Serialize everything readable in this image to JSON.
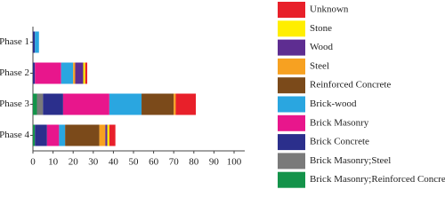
{
  "chart_data": {
    "type": "stacked-bar-horizontal",
    "categories": [
      "Phase 1",
      "Phase 2",
      "Phase 3",
      "Phase 4"
    ],
    "series": [
      {
        "name": "Unknown",
        "color": "#e8202a",
        "values": [
          0,
          1,
          10,
          3
        ]
      },
      {
        "name": "Stone",
        "color": "#ffee00",
        "values": [
          0,
          1,
          0,
          1
        ]
      },
      {
        "name": "Wood",
        "color": "#5e2d91",
        "values": [
          0,
          4,
          0,
          1
        ]
      },
      {
        "name": "Steel",
        "color": "#f7a121",
        "values": [
          0,
          1,
          1,
          3
        ]
      },
      {
        "name": "Reinforced Concrete",
        "color": "#7b4a1a",
        "values": [
          0,
          0,
          16,
          17
        ]
      },
      {
        "name": "Brick-wood",
        "color": "#2aa6e0",
        "values": [
          2,
          6,
          16,
          3
        ]
      },
      {
        "name": "Brick Masonry",
        "color": "#e8168c",
        "values": [
          0,
          13,
          23,
          6
        ]
      },
      {
        "name": "Brick Concrete",
        "color": "#2b2f8c",
        "values": [
          1,
          1,
          10,
          6
        ]
      },
      {
        "name": "Brick Masonry;Steel",
        "color": "#7a7a7a",
        "values": [
          0,
          0,
          3,
          0
        ]
      },
      {
        "name": "Brick Masonry;Reinforced Concrete",
        "color": "#14934a",
        "values": [
          0,
          0,
          2,
          1
        ]
      }
    ],
    "xlim": [
      0,
      100
    ],
    "xticks": [
      0,
      10,
      20,
      30,
      40,
      50,
      60,
      70,
      80,
      90,
      100
    ],
    "grid": false
  }
}
